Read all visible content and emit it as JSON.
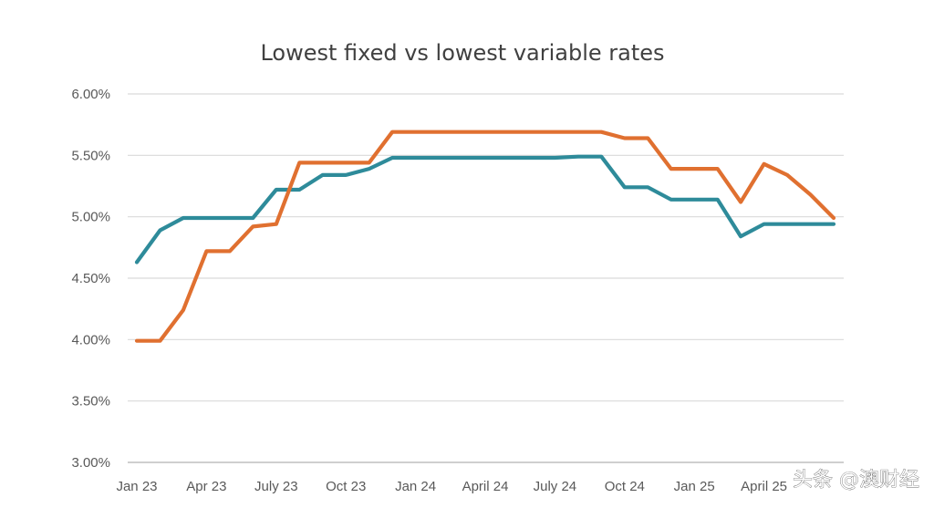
{
  "chart_data": {
    "type": "line",
    "title": "Lowest fixed vs lowest variable rates",
    "xlabel": "",
    "ylabel": "",
    "ylim": [
      3.0,
      6.0
    ],
    "y_ticks": [
      "6.00%",
      "5.50%",
      "5.00%",
      "4.50%",
      "4.00%",
      "3.50%",
      "3.00%"
    ],
    "y_tick_values": [
      6.0,
      5.5,
      5.0,
      4.5,
      4.0,
      3.5,
      3.0
    ],
    "x_tick_labels": [
      "Jan 23",
      "Apr 23",
      "July 23",
      "Oct 23",
      "Jan 24",
      "April 24",
      "July 24",
      "Oct 24",
      "Jan 25",
      "April 25"
    ],
    "x_tick_months": [
      "2023-01",
      "2023-04",
      "2023-07",
      "2023-10",
      "2024-01",
      "2024-04",
      "2024-07",
      "2024-10",
      "2025-01",
      "2025-04"
    ],
    "grid": true,
    "legend": "none",
    "x": [
      "2023-01",
      "2023-02",
      "2023-03",
      "2023-04",
      "2023-05",
      "2023-06",
      "2023-07",
      "2023-08",
      "2023-09",
      "2023-10",
      "2023-11",
      "2023-12",
      "2024-01",
      "2024-02",
      "2024-03",
      "2024-04",
      "2024-05",
      "2024-06",
      "2024-07",
      "2024-08",
      "2024-09",
      "2024-10",
      "2024-11",
      "2024-12",
      "2025-01",
      "2025-02",
      "2025-03",
      "2025-04",
      "2025-05",
      "2025-06",
      "2025-07"
    ],
    "series": [
      {
        "color": "#2E8B9A",
        "values": [
          4.63,
          4.89,
          4.99,
          4.99,
          4.99,
          4.99,
          5.22,
          5.22,
          5.34,
          5.34,
          5.39,
          5.48,
          5.48,
          5.48,
          5.48,
          5.48,
          5.48,
          5.48,
          5.48,
          5.49,
          5.49,
          5.24,
          5.24,
          5.14,
          5.14,
          5.14,
          4.84,
          4.94,
          4.94,
          4.94,
          4.94
        ]
      },
      {
        "color": "#E07030",
        "values": [
          3.99,
          3.99,
          4.24,
          4.72,
          4.72,
          4.92,
          4.94,
          5.44,
          5.44,
          5.44,
          5.44,
          5.69,
          5.69,
          5.69,
          5.69,
          5.69,
          5.69,
          5.69,
          5.69,
          5.69,
          5.69,
          5.64,
          5.64,
          5.39,
          5.39,
          5.39,
          5.12,
          5.43,
          5.34,
          5.18,
          4.99
        ]
      }
    ]
  },
  "watermark": {
    "text": "头条 @澳财经"
  }
}
